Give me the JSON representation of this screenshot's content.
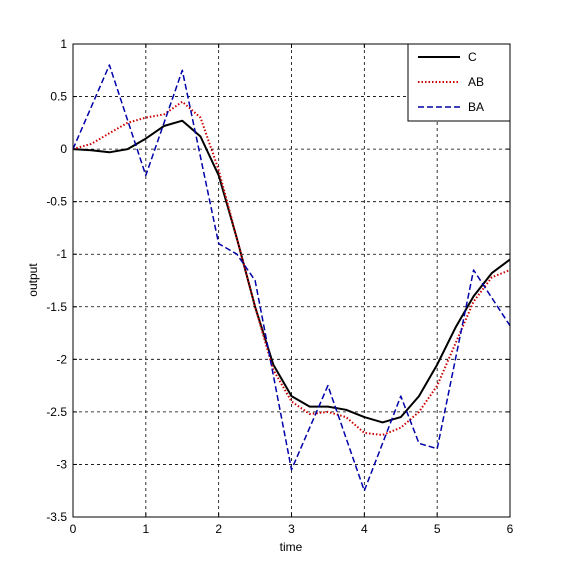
{
  "chart_data": {
    "type": "line",
    "title": "",
    "xlabel": "time",
    "ylabel": "output",
    "xlim": [
      0,
      6
    ],
    "ylim": [
      -3.5,
      1
    ],
    "grid": true,
    "legend_position": "top-right",
    "x_ticks": [
      0,
      1,
      2,
      3,
      4,
      5,
      6
    ],
    "x_tick_labels": [
      "0",
      "1",
      "2",
      "3",
      "4",
      "5",
      "6"
    ],
    "y_ticks": [
      1,
      0.5,
      0,
      -0.5,
      -1,
      -1.5,
      -2,
      -2.5,
      -3,
      -3.5
    ],
    "y_tick_labels": [
      "1",
      "0.5",
      "0",
      "-0.5",
      "-1",
      "-1.5",
      "-2",
      "-2.5",
      "-3",
      "-3.5"
    ],
    "series": [
      {
        "name": "C",
        "color": "#000000",
        "style": "solid",
        "x": [
          0,
          0.25,
          0.5,
          0.75,
          1.0,
          1.25,
          1.5,
          1.75,
          2.0,
          2.25,
          2.5,
          2.75,
          3.0,
          3.25,
          3.5,
          3.75,
          4.0,
          4.25,
          4.5,
          4.75,
          5.0,
          5.25,
          5.5,
          5.75,
          6.0
        ],
        "y": [
          0.0,
          -0.01,
          -0.03,
          0.0,
          0.1,
          0.22,
          0.27,
          0.12,
          -0.25,
          -0.85,
          -1.5,
          -2.05,
          -2.35,
          -2.45,
          -2.45,
          -2.48,
          -2.55,
          -2.6,
          -2.55,
          -2.35,
          -2.05,
          -1.7,
          -1.4,
          -1.18,
          -1.05
        ]
      },
      {
        "name": "AB",
        "color": "#cc0000",
        "style": "dotted",
        "x": [
          0,
          0.25,
          0.5,
          0.75,
          1.0,
          1.25,
          1.5,
          1.75,
          2.0,
          2.25,
          2.5,
          2.75,
          3.0,
          3.25,
          3.5,
          3.75,
          4.0,
          4.25,
          4.5,
          4.75,
          5.0,
          5.25,
          5.5,
          5.75,
          6.0
        ],
        "y": [
          0.0,
          0.05,
          0.15,
          0.25,
          0.3,
          0.33,
          0.45,
          0.3,
          -0.2,
          -0.85,
          -1.5,
          -2.1,
          -2.4,
          -2.52,
          -2.5,
          -2.55,
          -2.7,
          -2.72,
          -2.65,
          -2.5,
          -2.25,
          -1.85,
          -1.45,
          -1.22,
          -1.15
        ]
      },
      {
        "name": "BA",
        "color": "#0000aa",
        "style": "dashed",
        "x": [
          0,
          0.5,
          1.0,
          1.5,
          2.0,
          2.25,
          2.5,
          3.0,
          3.5,
          4.0,
          4.5,
          4.75,
          5.0,
          5.5,
          6.0
        ],
        "y": [
          0.0,
          0.8,
          -0.25,
          0.75,
          -0.9,
          -1.0,
          -1.25,
          -3.05,
          -2.25,
          -3.25,
          -2.35,
          -2.8,
          -2.85,
          -1.15,
          -1.68
        ]
      }
    ]
  }
}
